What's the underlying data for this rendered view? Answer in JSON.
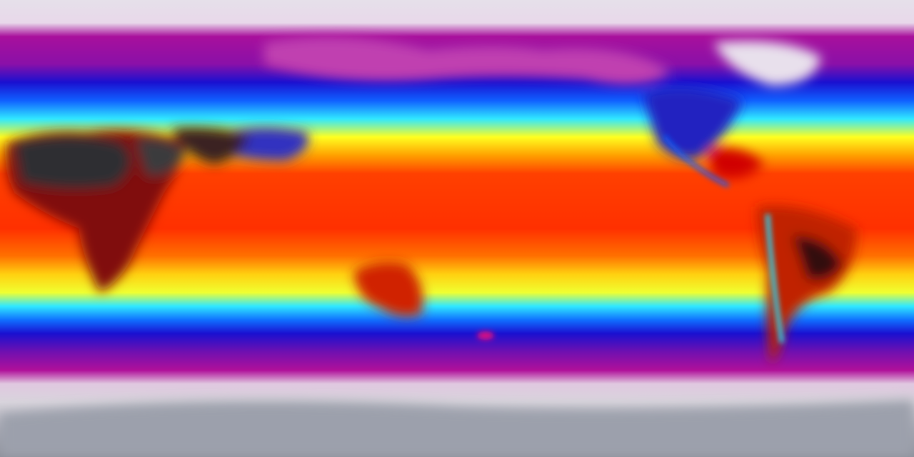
{
  "map": {
    "projection": "equirectangular",
    "type": "global surface temperature field",
    "colormap": [
      "#8a8f9a",
      "#d8d0dc",
      "#f0e0f0",
      "#b0109a",
      "#7a10b0",
      "#1010d0",
      "#1060ff",
      "#20e0ff",
      "#ffff20",
      "#ffa000",
      "#ff3000",
      "#c00000",
      "#300808",
      "#3a3a3a"
    ],
    "colors": {
      "polar": "#dcd6e0",
      "cold": "#a0109a",
      "cool": "#1414d8",
      "mild": "#30e8ff",
      "warm": "#ffee10",
      "hot": "#ff3c00",
      "hottest": "#2a2a2a"
    }
  }
}
